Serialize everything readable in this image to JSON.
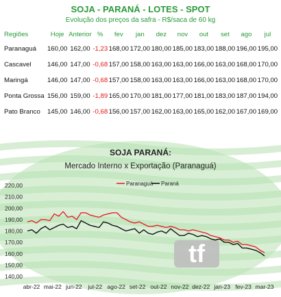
{
  "header": {
    "title": "SOJA - PARANÁ - LOTES - SPOT",
    "subtitle": "Evolução dos preços da safra - R$/saca de 60 kg"
  },
  "table": {
    "columns": [
      "Regiões",
      "Hoje",
      "Anterior",
      "%",
      "fev",
      "jan",
      "dez",
      "nov",
      "out",
      "set",
      "ago",
      "jul"
    ],
    "rows": [
      {
        "region": "Paranaguá",
        "cells": [
          "160,00",
          "162,00",
          "-1,23",
          "168,00",
          "172,00",
          "180,00",
          "185,00",
          "183,00",
          "188,00",
          "196,00",
          "195,00"
        ]
      },
      {
        "region": "Cascavel",
        "cells": [
          "146,00",
          "147,00",
          "-0,68",
          "157,00",
          "158,00",
          "163,00",
          "163,00",
          "166,00",
          "163,00",
          "168,00",
          "170,00"
        ]
      },
      {
        "region": "Maringá",
        "cells": [
          "146,00",
          "147,00",
          "-0,68",
          "157,00",
          "158,00",
          "163,00",
          "163,00",
          "166,00",
          "163,00",
          "168,00",
          "170,00"
        ]
      },
      {
        "region": "Ponta Grossa",
        "cells": [
          "156,00",
          "159,00",
          "-1,89",
          "165,00",
          "170,00",
          "181,00",
          "177,00",
          "181,00",
          "183,00",
          "187,00",
          "194,00"
        ]
      },
      {
        "region": "Pato Branco",
        "cells": [
          "145,00",
          "146,00",
          "-0,68",
          "156,00",
          "157,00",
          "162,00",
          "163,00",
          "165,00",
          "162,00",
          "167,00",
          "169,00"
        ]
      }
    ]
  },
  "chart_data": {
    "type": "line",
    "title": "SOJA PARANÁ:",
    "subtitle": "Mercado Interno x Exportação (Paranaguá)",
    "x_labels": [
      "abr-22",
      "mai-22",
      "jun-22",
      "jul-22",
      "ago-22",
      "set-22",
      "out-22",
      "nov-22",
      "dez-22",
      "jan-23",
      "fev-23",
      "mar-23"
    ],
    "ylim": [
      140,
      220
    ],
    "yticks": [
      "140,00",
      "150,00",
      "160,00",
      "170,00",
      "180,00",
      "190,00",
      "200,00",
      "210,00",
      "220,00"
    ],
    "watermark": "tf",
    "colors": {
      "Paranaguá": "#e8212b",
      "Paraná": "#111111"
    },
    "series": [
      {
        "name": "Paranaguá",
        "values": [
          188,
          189,
          187,
          190,
          190,
          189,
          195,
          193,
          197,
          192,
          193,
          190,
          196,
          196,
          194,
          193,
          192,
          194,
          195,
          196,
          196,
          192,
          190,
          188,
          187,
          188,
          186,
          184,
          184,
          185,
          184,
          183,
          184,
          183,
          181,
          181,
          180,
          181,
          180,
          179,
          178,
          176,
          175,
          174,
          172,
          172,
          170,
          171,
          168,
          168,
          167,
          166,
          163,
          161
        ]
      },
      {
        "name": "Paraná",
        "values": [
          180,
          181,
          178,
          182,
          184,
          181,
          183,
          185,
          186,
          183,
          184,
          182,
          189,
          187,
          185,
          184,
          183,
          188,
          187,
          185,
          184,
          182,
          180,
          181,
          182,
          178,
          181,
          178,
          177,
          179,
          180,
          178,
          182,
          179,
          176,
          176,
          178,
          177,
          175,
          176,
          175,
          173,
          172,
          173,
          170,
          170,
          168,
          169,
          165,
          165,
          164,
          163,
          161,
          158
        ]
      }
    ]
  }
}
